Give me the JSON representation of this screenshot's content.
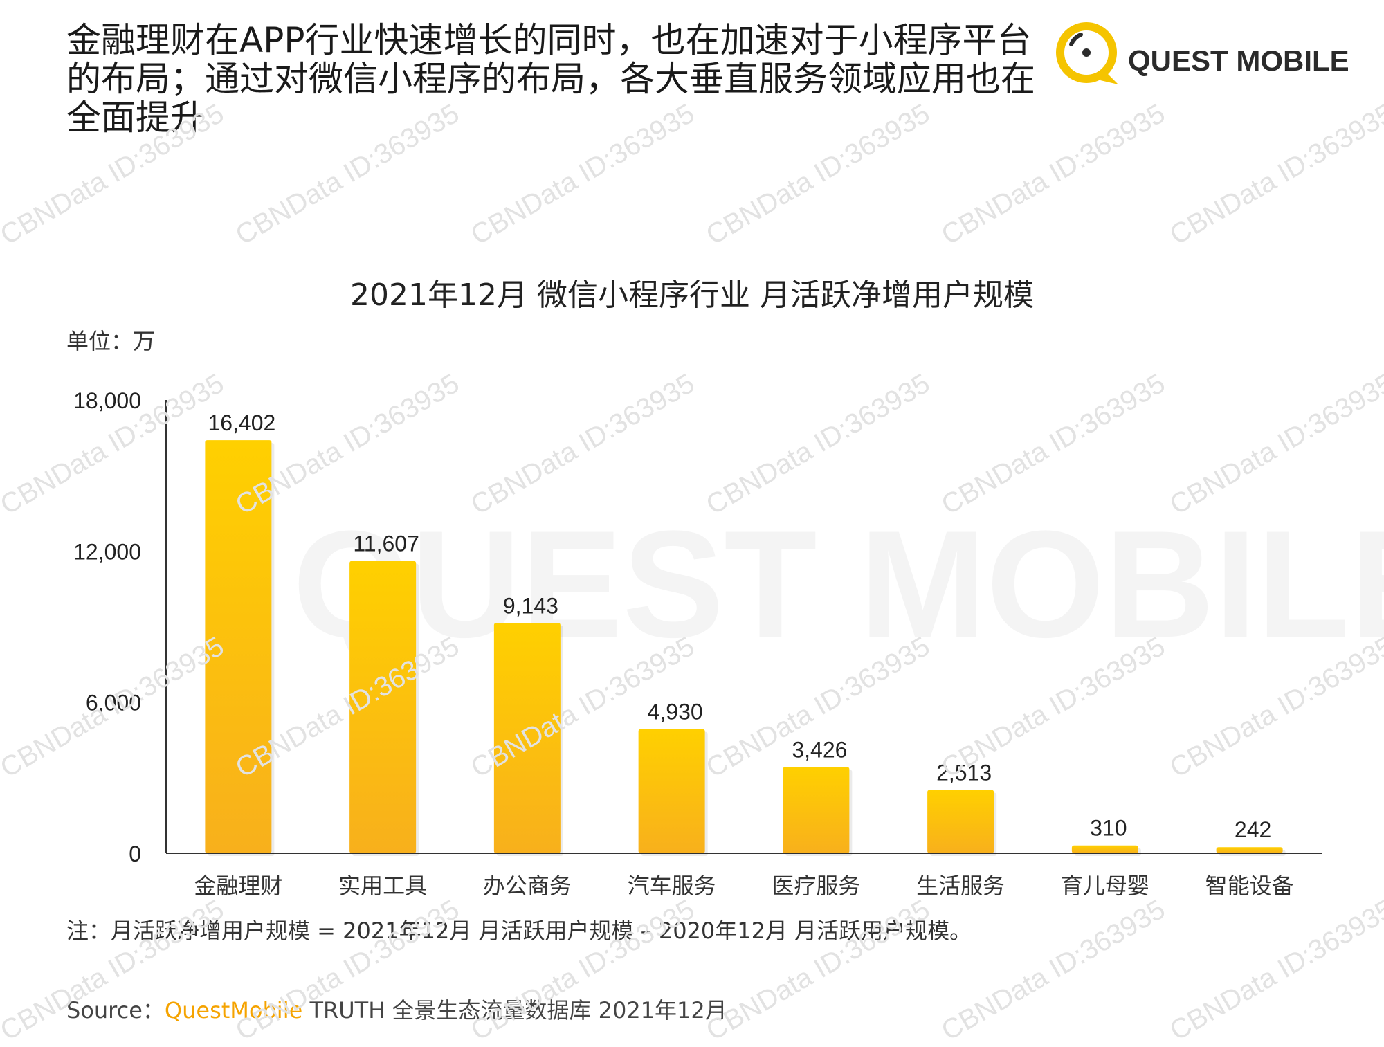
{
  "headline": "金融理财在APP行业快速增长的同时，也在加速对于小程序平台的布局；通过对微信小程序的布局，各大垂直服务领域应用也在全面提升",
  "logo": {
    "text": "QUEST MOBILE",
    "primary_color": "#f5c400"
  },
  "watermark": {
    "text": "CBNData ID:363935",
    "large_text": "QUEST MOBILE"
  },
  "unit_label": "单位：万",
  "note": "注：月活跃净增用户规模 = 2021年12月 月活跃用户规模 – 2020年12月 月活跃用户规模。",
  "source": {
    "prefix": "Source：",
    "brand": "QuestMobile",
    "suffix": " TRUTH 全景生态流量数据库 2021年12月"
  },
  "colors": {
    "bar_top": "#ffd000",
    "bar_bottom": "#f8b01c",
    "axis": "#333333",
    "brand": "#f5a300"
  },
  "chart_data": {
    "type": "bar",
    "title": "2021年12月 微信小程序行业 月活跃净增用户规模",
    "categories": [
      "金融理财",
      "实用工具",
      "办公商务",
      "汽车服务",
      "医疗服务",
      "生活服务",
      "育儿母婴",
      "智能设备"
    ],
    "values": [
      16402,
      11607,
      9143,
      4930,
      3426,
      2513,
      310,
      242
    ],
    "value_labels": [
      "16,402",
      "11,607",
      "9,143",
      "4,930",
      "3,426",
      "2,513",
      "310",
      "242"
    ],
    "yticks": [
      0,
      6000,
      12000,
      18000
    ],
    "ytick_labels": [
      "0",
      "6,000",
      "12,000",
      "18,000"
    ],
    "ylim": [
      0,
      18000
    ],
    "xlabel": "",
    "ylabel": "",
    "grid": false,
    "legend": "none"
  }
}
